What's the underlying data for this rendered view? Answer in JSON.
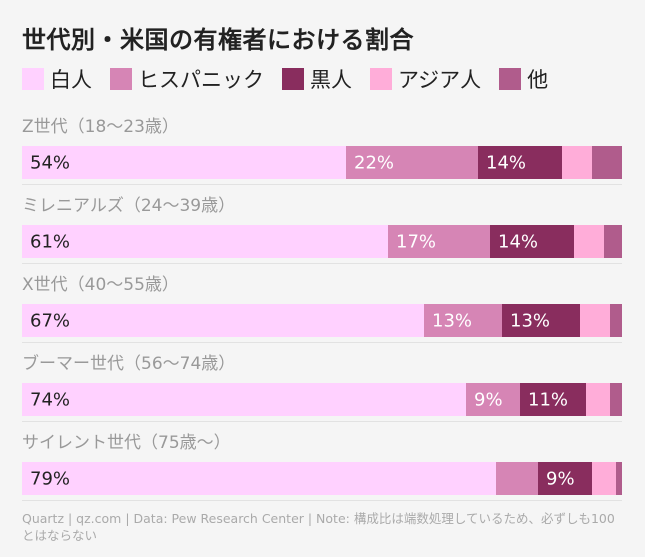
{
  "title": "世代別・米国の有権者における割合",
  "legend": [
    {
      "label": "白人",
      "color": "#ffd1ff"
    },
    {
      "label": "ヒスパニック",
      "color": "#d685b5"
    },
    {
      "label": "黒人",
      "color": "#892d5e"
    },
    {
      "label": "アジア人",
      "color": "#ffadd9"
    },
    {
      "label": "他",
      "color": "#b05c8c"
    }
  ],
  "chart_data": {
    "type": "bar",
    "orientation": "horizontal-stacked-100",
    "title": "世代別・米国の有権者における割合",
    "categories": [
      "Z世代（18〜23歳）",
      "ミレニアルズ（24〜39歳）",
      "X世代（40〜55歳）",
      "ブーマー世代（56〜74歳）",
      "サイレント世代（75歳〜）"
    ],
    "series": [
      {
        "name": "白人",
        "values": [
          54,
          61,
          67,
          74,
          79
        ],
        "labels": [
          "54%",
          "61%",
          "67%",
          "74%",
          "79%"
        ],
        "color": "#ffd1ff"
      },
      {
        "name": "ヒスパニック",
        "values": [
          22,
          17,
          13,
          9,
          7
        ],
        "labels": [
          "22%",
          "17%",
          "13%",
          "9%",
          ""
        ],
        "color": "#d685b5"
      },
      {
        "name": "黒人",
        "values": [
          14,
          14,
          13,
          11,
          9
        ],
        "labels": [
          "14%",
          "14%",
          "13%",
          "11%",
          "9%"
        ],
        "color": "#892d5e"
      },
      {
        "name": "アジア人",
        "values": [
          5,
          5,
          5,
          4,
          4
        ],
        "labels": [
          "",
          "",
          "",
          "",
          ""
        ],
        "color": "#ffadd9"
      },
      {
        "name": "他",
        "values": [
          5,
          3,
          2,
          2,
          1
        ],
        "labels": [
          "",
          "",
          "",
          "",
          ""
        ],
        "color": "#b05c8c"
      }
    ],
    "xlim": [
      0,
      100
    ],
    "legend_position": "top"
  },
  "footer": "Quartz | qz.com | Data: Pew Research Center | Note: 構成比は端数処理しているため、必ずしも100とはならない"
}
